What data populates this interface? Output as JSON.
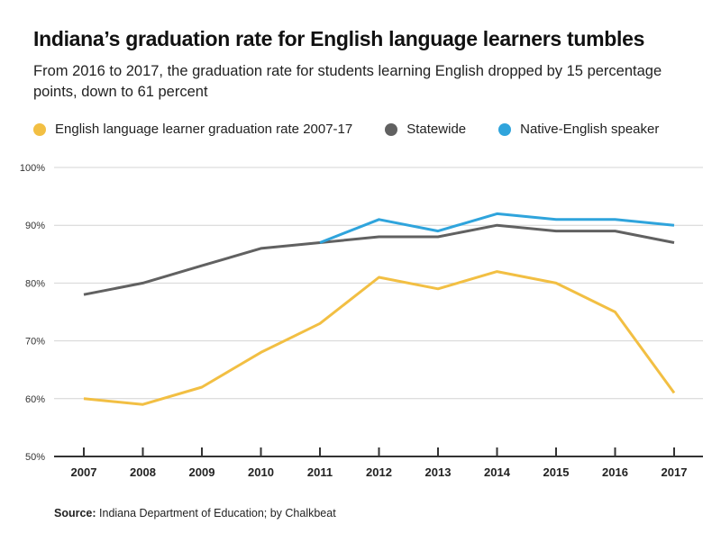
{
  "header": {
    "title": "Indiana’s graduation rate for English language learners tumbles",
    "subtitle": "From 2016 to 2017, the graduation rate for students learning English dropped by 15 percentage points, down to 61 percent"
  },
  "footer": {
    "source_label": "Source:",
    "source_text": " Indiana Department of Education; by Chalkbeat"
  },
  "chart_data": {
    "type": "line",
    "title": "Indiana’s graduation rate for English language learners tumbles",
    "subtitle": "From 2016 to 2017, the graduation rate for students learning English dropped by 15 percentage points, down to 61 percent",
    "xlabel": "",
    "ylabel": "",
    "x": [
      2007,
      2008,
      2009,
      2010,
      2011,
      2012,
      2013,
      2014,
      2015,
      2016,
      2017
    ],
    "x_tick_labels": [
      "2007",
      "2008",
      "2009",
      "2010",
      "2011",
      "2012",
      "2013",
      "2014",
      "2015",
      "2016",
      "2017"
    ],
    "ylim": [
      50,
      100
    ],
    "y_ticks": [
      50,
      60,
      70,
      80,
      90,
      100
    ],
    "y_tick_labels": [
      "50%",
      "60%",
      "70%",
      "80%",
      "90%",
      "100%"
    ],
    "grid": true,
    "legend_position": "top-left",
    "series": [
      {
        "name": "English language learner graduation rate 2007-17",
        "color": "#f2bf43",
        "values": [
          60,
          59,
          62,
          68,
          73,
          81,
          79,
          82,
          80,
          75,
          61
        ]
      },
      {
        "name": "Statewide",
        "color": "#616161",
        "values": [
          78,
          80,
          83,
          86,
          87,
          88,
          88,
          90,
          89,
          89,
          87
        ]
      },
      {
        "name": "Native-English speaker",
        "color": "#2fa4dc",
        "values": [
          null,
          null,
          null,
          null,
          87,
          91,
          89,
          92,
          91,
          91,
          90
        ]
      }
    ]
  }
}
